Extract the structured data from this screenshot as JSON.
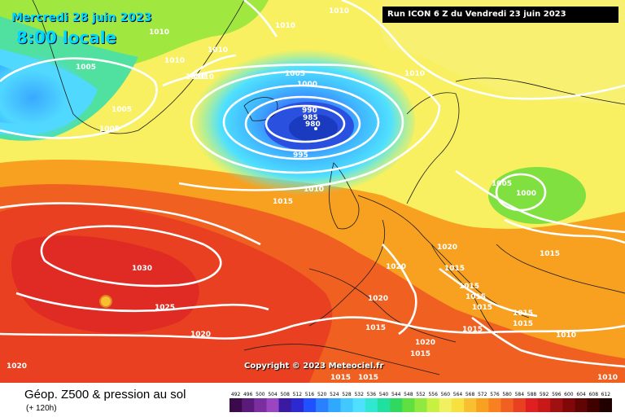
{
  "header": {
    "date": "Mercredi 28 juin 2023",
    "time": "8:00 locale",
    "run": "Run ICON 6 Z du Vendredi 23 juin 2023"
  },
  "copyright": "Copyright © 2023 Meteociel.fr",
  "legend": {
    "title": "Géop. Z500 & pression au sol",
    "subtitle": "(+ 120h)",
    "values": [
      "492",
      "496",
      "500",
      "504",
      "508",
      "512",
      "516",
      "520",
      "524",
      "528",
      "532",
      "536",
      "540",
      "544",
      "548",
      "552",
      "556",
      "560",
      "564",
      "568",
      "572",
      "576",
      "580",
      "584",
      "588",
      "592",
      "596",
      "600",
      "604",
      "608",
      "612"
    ],
    "colors": [
      "#3a0a4a",
      "#5a1a7a",
      "#7a2ea0",
      "#9a46c0",
      "#3a1aa0",
      "#2a2ad0",
      "#2050ff",
      "#2a80ff",
      "#30a8ff",
      "#40c8ff",
      "#50e0ff",
      "#30e8d0",
      "#20e0a0",
      "#30d860",
      "#60e040",
      "#90e840",
      "#c8f040",
      "#f0f060",
      "#f8e040",
      "#f8c030",
      "#f8a020",
      "#f88020",
      "#f06020",
      "#e84020",
      "#e02020",
      "#c81818",
      "#a01010",
      "#800808",
      "#600404",
      "#400000",
      "#200000"
    ]
  },
  "isobars": [
    "1010",
    "1010",
    "1010",
    "1010",
    "1010",
    "1010",
    "1010",
    "1005",
    "1005",
    "1005",
    "1005",
    "1000",
    "990",
    "985",
    "980",
    "995",
    "1010",
    "1015",
    "1010",
    "1005",
    "1000",
    "1030",
    "1025",
    "1020",
    "1020",
    "1020",
    "1015",
    "1015",
    "1015",
    "1015",
    "1015",
    "1015",
    "1015",
    "1020",
    "1015",
    "1015",
    "1015",
    "1010",
    "1010",
    "1020",
    "1015",
    "1020",
    "1015"
  ]
}
